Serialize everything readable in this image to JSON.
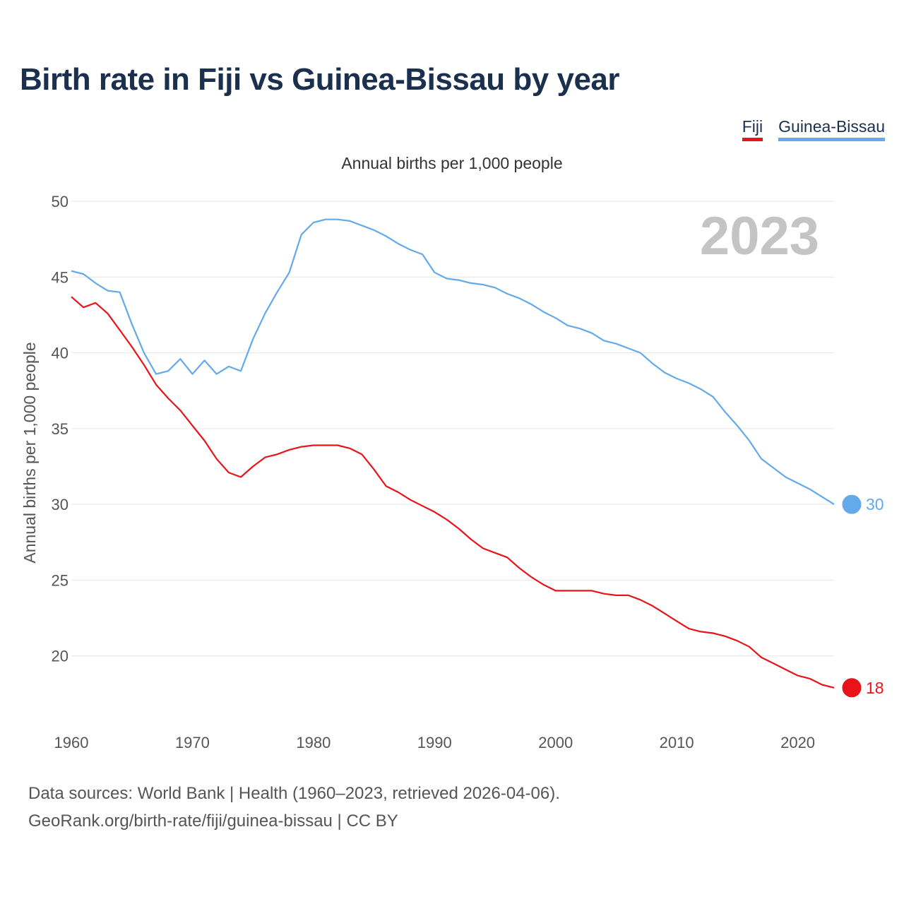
{
  "colors": {
    "fiji": "#e8141a",
    "guinea_bissau": "#64a9ea",
    "grid": "#e6e6e6",
    "title": "#1b2f4e"
  },
  "chart_data": {
    "type": "line",
    "title": "Birth rate in Fiji vs Guinea-Bissau by year",
    "subtitle": "Annual births per 1,000 people",
    "ylabel": "Annual births per 1,000 people",
    "xlabel": "",
    "ylim": [
      15,
      50
    ],
    "xlim": [
      1960,
      2023
    ],
    "yticks": [
      20,
      25,
      30,
      35,
      40,
      45,
      50
    ],
    "xticks": [
      1960,
      1970,
      1980,
      1990,
      2000,
      2010,
      2020
    ],
    "current_year": "2023",
    "legend": [
      "Fiji",
      "Guinea-Bissau"
    ],
    "series": [
      {
        "name": "Guinea-Bissau",
        "color": "#64a9ea",
        "end_label": "30",
        "x": [
          1960,
          1961,
          1962,
          1963,
          1964,
          1965,
          1966,
          1967,
          1968,
          1969,
          1970,
          1971,
          1972,
          1973,
          1974,
          1975,
          1976,
          1977,
          1978,
          1979,
          1980,
          1981,
          1982,
          1983,
          1984,
          1985,
          1986,
          1987,
          1988,
          1989,
          1990,
          1991,
          1992,
          1993,
          1994,
          1995,
          1996,
          1997,
          1998,
          1999,
          2000,
          2001,
          2002,
          2003,
          2004,
          2005,
          2006,
          2007,
          2008,
          2009,
          2010,
          2011,
          2012,
          2013,
          2014,
          2015,
          2016,
          2017,
          2018,
          2019,
          2020,
          2021,
          2022,
          2023
        ],
        "values": [
          45.4,
          45.2,
          44.6,
          44.1,
          44.0,
          41.9,
          40.0,
          38.6,
          38.8,
          39.6,
          38.6,
          39.5,
          38.6,
          39.1,
          38.8,
          40.9,
          42.6,
          44.0,
          45.3,
          47.8,
          48.6,
          48.8,
          48.8,
          48.7,
          48.4,
          48.1,
          47.7,
          47.2,
          46.8,
          46.5,
          45.3,
          44.9,
          44.8,
          44.6,
          44.5,
          44.3,
          43.9,
          43.6,
          43.2,
          42.7,
          42.3,
          41.8,
          41.6,
          41.3,
          40.8,
          40.6,
          40.3,
          40.0,
          39.3,
          38.7,
          38.3,
          38.0,
          37.6,
          37.1,
          36.1,
          35.2,
          34.2,
          33.0,
          32.4,
          31.8,
          31.4,
          31.0,
          30.5,
          30.0
        ]
      },
      {
        "name": "Fiji",
        "color": "#e8141a",
        "end_label": "18",
        "x": [
          1960,
          1961,
          1962,
          1963,
          1964,
          1965,
          1966,
          1967,
          1968,
          1969,
          1970,
          1971,
          1972,
          1973,
          1974,
          1975,
          1976,
          1977,
          1978,
          1979,
          1980,
          1981,
          1982,
          1983,
          1984,
          1985,
          1986,
          1987,
          1988,
          1989,
          1990,
          1991,
          1992,
          1993,
          1994,
          1995,
          1996,
          1997,
          1998,
          1999,
          2000,
          2001,
          2002,
          2003,
          2004,
          2005,
          2006,
          2007,
          2008,
          2009,
          2010,
          2011,
          2012,
          2013,
          2014,
          2015,
          2016,
          2017,
          2018,
          2019,
          2020,
          2021,
          2022,
          2023
        ],
        "values": [
          43.7,
          43.0,
          43.3,
          42.6,
          41.5,
          40.4,
          39.2,
          37.9,
          37.0,
          36.2,
          35.2,
          34.2,
          33.0,
          32.1,
          31.8,
          32.5,
          33.1,
          33.3,
          33.6,
          33.8,
          33.9,
          33.9,
          33.9,
          33.7,
          33.3,
          32.3,
          31.2,
          30.8,
          30.3,
          29.9,
          29.5,
          29.0,
          28.4,
          27.7,
          27.1,
          26.8,
          26.5,
          25.8,
          25.2,
          24.7,
          24.3,
          24.3,
          24.3,
          24.3,
          24.1,
          24.0,
          24.0,
          23.7,
          23.3,
          22.8,
          22.3,
          21.8,
          21.6,
          21.5,
          21.3,
          21.0,
          20.6,
          19.9,
          19.5,
          19.1,
          18.7,
          18.5,
          18.1,
          17.9
        ]
      }
    ]
  },
  "footer": {
    "line1": "Data sources: World Bank | Health (1960–2023, retrieved 2026-04-06).",
    "line2": "GeoRank.org/birth-rate/fiji/guinea-bissau | CC BY"
  }
}
